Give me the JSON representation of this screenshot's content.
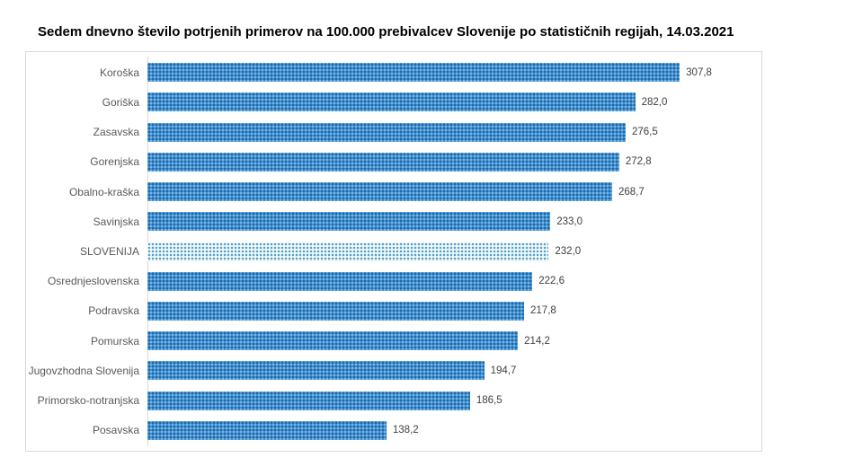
{
  "page": {
    "title": "Sedem dnevno število potrjenih primerov na 100.000 prebivalcev Slovenije po statističnih regijah, 14.03.2021"
  },
  "chart_data": {
    "type": "bar",
    "orientation": "horizontal",
    "title": "Sedem dnevno število potrjenih primerov na 100.000 prebivalcev Slovenije po statističnih regijah, 14.03.2021",
    "categories": [
      "Koroška",
      "Goriška",
      "Zasavska",
      "Gorenjska",
      "Obalno-kraška",
      "Savinjska",
      "SLOVENIJA",
      "Osrednjeslovenska",
      "Podravska",
      "Pomurska",
      "Jugovzhodna Slovenija",
      "Primorsko-notranjska",
      "Posavska"
    ],
    "values": [
      307.8,
      282.0,
      276.5,
      272.8,
      268.7,
      233.0,
      232.0,
      222.6,
      217.8,
      214.2,
      194.7,
      186.5,
      138.2
    ],
    "value_labels": [
      "307,8",
      "282,0",
      "276,5",
      "272,8",
      "268,7",
      "233,0",
      "232,0",
      "222,6",
      "217,8",
      "214,2",
      "194,7",
      "186,5",
      "138,2"
    ],
    "highlight_category": "SLOVENIJA",
    "xlabel": "",
    "ylabel": "",
    "xlim": [
      0,
      355
    ],
    "grid": false,
    "legend": false,
    "data_labels": true,
    "colors": {
      "bar": "#3F8ED0",
      "bar_dot": "#1A5B96",
      "bar_dot_light": "#8FC3E8",
      "highlight": "#D7EDF5",
      "highlight_dot": "#2F86AE",
      "label_text": "#595959",
      "value_text": "#404040",
      "frame_border": "#D9D9D9",
      "title_text": "#000000"
    }
  }
}
